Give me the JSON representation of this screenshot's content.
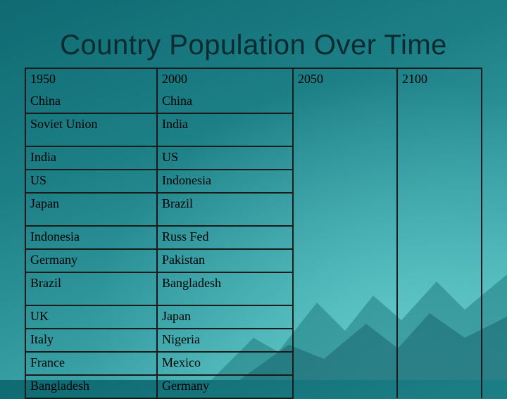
{
  "slide": {
    "title": "Country Population Over Time"
  },
  "table": {
    "headers": [
      "1950",
      "2000",
      "2050",
      "2100"
    ],
    "rows": [
      [
        "China",
        "China",
        "",
        ""
      ],
      [
        "Soviet Union",
        "India",
        "",
        ""
      ],
      [
        "India",
        "US",
        "",
        ""
      ],
      [
        "US",
        "Indonesia",
        "",
        ""
      ],
      [
        "Japan",
        "Brazil",
        "",
        ""
      ],
      [
        "Indonesia",
        "Russ Fed",
        "",
        ""
      ],
      [
        "Germany",
        "Pakistan",
        "",
        ""
      ],
      [
        "Brazil",
        "Bangladesh",
        "",
        ""
      ],
      [
        "UK",
        "Japan",
        "",
        ""
      ],
      [
        "Italy",
        "Nigeria",
        "",
        ""
      ],
      [
        "France",
        "Mexico",
        "",
        ""
      ],
      [
        "Bangladesh",
        "Germany",
        "",
        ""
      ]
    ]
  },
  "colors": {
    "background_dark": "#0f6a72",
    "background_light": "#5cc2c2",
    "title_text": "#0a2b2f",
    "grid_lines": "#1a1a1a"
  }
}
